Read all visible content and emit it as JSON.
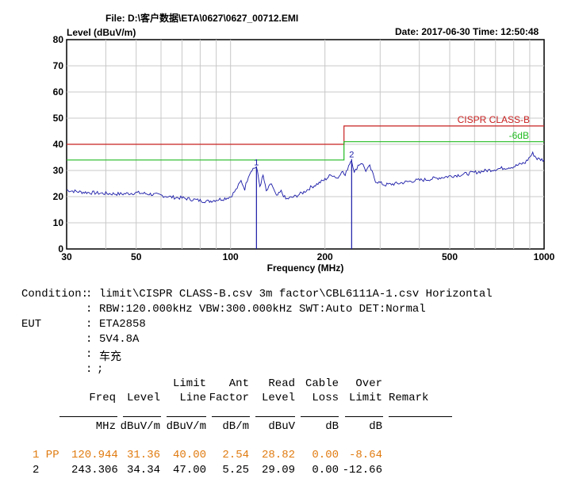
{
  "header": {
    "file": "File: D:\\客户数据\\ETA\\0627\\0627_00712.EMI",
    "date_time": "Date: 2017-06-30  Time: 12:50:48"
  },
  "chart_data": {
    "type": "line",
    "ylabel": "Level (dBuV/m)",
    "xlabel": "Frequency (MHz)",
    "x_scale": "log",
    "xlim": [
      30,
      1000
    ],
    "ylim": [
      0,
      80
    ],
    "xticks": [
      30,
      50,
      100,
      200,
      500,
      1000
    ],
    "yticks": [
      0,
      10,
      20,
      30,
      40,
      50,
      60,
      70,
      80
    ],
    "grid": true,
    "series": [
      {
        "kind": "measurement",
        "color": "#1a1aa8",
        "points": [
          [
            30,
            22.5
          ],
          [
            33,
            21.8
          ],
          [
            36,
            21.5
          ],
          [
            40,
            21.2
          ],
          [
            45,
            21.0
          ],
          [
            50,
            21.5
          ],
          [
            55,
            21.0
          ],
          [
            60,
            20.5
          ],
          [
            65,
            19.8
          ],
          [
            70,
            19.5
          ],
          [
            75,
            19.0
          ],
          [
            80,
            18.5
          ],
          [
            85,
            18.2
          ],
          [
            90,
            18.8
          ],
          [
            95,
            19.2
          ],
          [
            100,
            20.0
          ],
          [
            104,
            22.5
          ],
          [
            108,
            26.0
          ],
          [
            111,
            23.0
          ],
          [
            114,
            28.0
          ],
          [
            117,
            30.5
          ],
          [
            120.944,
            31.36
          ],
          [
            124,
            24.0
          ],
          [
            127,
            28.0
          ],
          [
            130,
            22.0
          ],
          [
            135,
            25.0
          ],
          [
            140,
            20.0
          ],
          [
            145,
            22.0
          ],
          [
            150,
            19.0
          ],
          [
            160,
            20.0
          ],
          [
            170,
            21.5
          ],
          [
            180,
            23.5
          ],
          [
            190,
            25.0
          ],
          [
            200,
            26.5
          ],
          [
            210,
            28.5
          ],
          [
            220,
            27.0
          ],
          [
            226,
            30.0
          ],
          [
            232,
            28.0
          ],
          [
            238,
            32.0
          ],
          [
            243.306,
            34.34
          ],
          [
            248,
            29.0
          ],
          [
            255,
            32.0
          ],
          [
            262,
            33.0
          ],
          [
            270,
            30.0
          ],
          [
            278,
            31.5
          ],
          [
            290,
            26.0
          ],
          [
            310,
            24.5
          ],
          [
            340,
            25.0
          ],
          [
            380,
            26.0
          ],
          [
            420,
            26.5
          ],
          [
            480,
            27.5
          ],
          [
            550,
            28.5
          ],
          [
            620,
            29.5
          ],
          [
            700,
            30.5
          ],
          [
            800,
            31.5
          ],
          [
            870,
            33.0
          ],
          [
            920,
            36.5
          ],
          [
            950,
            34.5
          ],
          [
            1000,
            34.0
          ]
        ]
      },
      {
        "kind": "limit",
        "name": "CISPR CLASS-B",
        "color": "#c82020",
        "points": [
          [
            30,
            40
          ],
          [
            230,
            40
          ],
          [
            230,
            47
          ],
          [
            1000,
            47
          ]
        ]
      },
      {
        "kind": "margin",
        "name": "-6dB",
        "color": "#22bb22",
        "points": [
          [
            30,
            34
          ],
          [
            230,
            34
          ],
          [
            230,
            41
          ],
          [
            1000,
            41
          ]
        ]
      }
    ],
    "markers": [
      {
        "label": "1",
        "x": 120.944,
        "y": 31.36
      },
      {
        "label": "2",
        "x": 243.306,
        "y": 34.34
      }
    ]
  },
  "report": {
    "condition_label": "Condition:",
    "condition_line1": "limit\\CISPR CLASS-B.csv 3m factor\\CBL6111A-1.csv Horizontal",
    "condition_line2": "RBW:120.000kHz VBW:300.000kHz SWT:Auto DET:Normal",
    "eut_label": "EUT",
    "eut_model": "ETA2858",
    "eut_power": "5V4.8A",
    "eut_desc": "车充",
    "eut_note": ";"
  },
  "table": {
    "headers_line1": [
      "",
      "",
      "Limit",
      "Ant",
      "Read",
      "Cable",
      "Over",
      ""
    ],
    "headers_line2": [
      "Freq",
      "Level",
      "Line",
      "Factor",
      "Level",
      "Loss",
      "Limit",
      "Remark"
    ],
    "units": [
      "MHz",
      "dBuV/m",
      "dBuV/m",
      "dB/m",
      "dBuV",
      "dB",
      "dB",
      ""
    ],
    "rows": [
      {
        "no": "1 PP",
        "freq": "120.944",
        "level": "31.36",
        "limit": "40.00",
        "ant": "2.54",
        "read": "28.82",
        "cable": "0.00",
        "over": "-8.64"
      },
      {
        "no": "2",
        "freq": "243.306",
        "level": "34.34",
        "limit": "47.00",
        "ant": "5.25",
        "read": "29.09",
        "cable": "0.00",
        "over": "-12.66"
      }
    ]
  }
}
